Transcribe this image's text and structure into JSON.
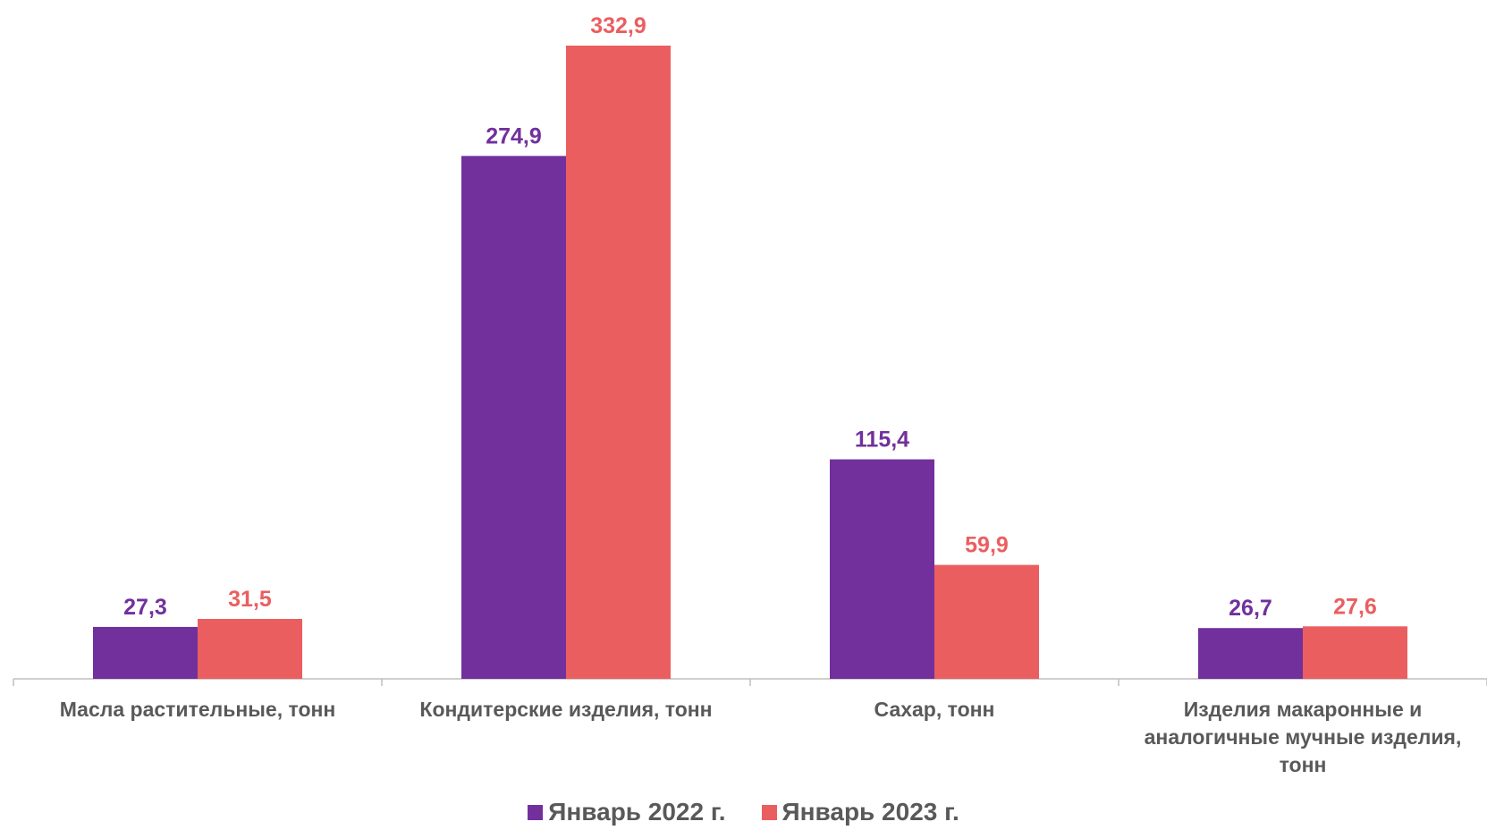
{
  "chart_data": {
    "type": "bar",
    "categories": [
      "Масла растительные, тонн",
      "Кондитерские изделия, тонн",
      "Сахар, тонн",
      "Изделия макаронные и аналогичные мучные изделия, тонн"
    ],
    "series": [
      {
        "name": "Январь 2022 г.",
        "color": "#72309c",
        "values": [
          27.3,
          274.9,
          115.4,
          26.7
        ],
        "value_labels": [
          "27,3",
          "274,9",
          "115,4",
          "26,7"
        ]
      },
      {
        "name": "Январь 2023 г.",
        "color": "#eb5e60",
        "values": [
          31.5,
          332.9,
          59.9,
          27.6
        ],
        "value_labels": [
          "31,5",
          "332,9",
          "59,9",
          "27,6"
        ]
      }
    ],
    "legend": "bottom"
  }
}
